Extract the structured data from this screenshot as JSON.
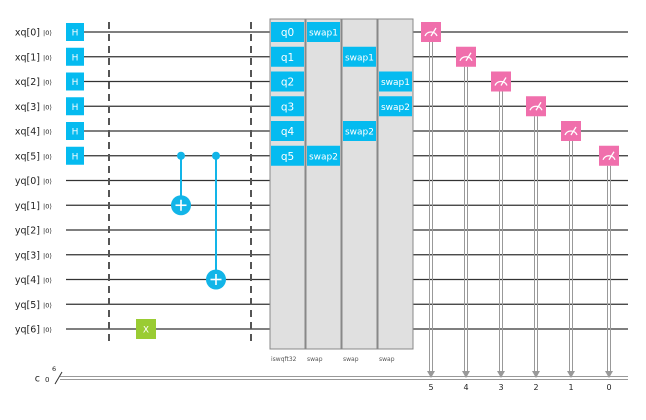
{
  "circuit": {
    "qubits": [
      {
        "label": "xq[0]",
        "init": "|0⟩"
      },
      {
        "label": "xq[1]",
        "init": "|0⟩"
      },
      {
        "label": "xq[2]",
        "init": "|0⟩"
      },
      {
        "label": "xq[3]",
        "init": "|0⟩"
      },
      {
        "label": "xq[4]",
        "init": "|0⟩"
      },
      {
        "label": "xq[5]",
        "init": "|0⟩"
      },
      {
        "label": "yq[0]",
        "init": "|0⟩"
      },
      {
        "label": "yq[1]",
        "init": "|0⟩"
      },
      {
        "label": "yq[2]",
        "init": "|0⟩"
      },
      {
        "label": "yq[3]",
        "init": "|0⟩"
      },
      {
        "label": "yq[4]",
        "init": "|0⟩"
      },
      {
        "label": "yq[5]",
        "init": "|0⟩"
      },
      {
        "label": "yq[6]",
        "init": "|0⟩"
      }
    ],
    "classical": {
      "label": "c",
      "init": "0",
      "width": "6"
    },
    "h_gates": {
      "label": "H",
      "targets": [
        0,
        1,
        2,
        3,
        4,
        5
      ]
    },
    "cnots": [
      {
        "control": 5,
        "target": 7
      },
      {
        "control": 5,
        "target": 10
      }
    ],
    "x_gate": {
      "label": "X",
      "target": 12
    },
    "iqft_block": {
      "name": "iswqft32",
      "pin_labels": [
        "q0",
        "q1",
        "q2",
        "q3",
        "q4",
        "q5"
      ]
    },
    "swap_blocks": [
      {
        "name": "swap",
        "pins": [
          {
            "label": "swap1",
            "qubit": 0
          },
          {
            "label": "swap2",
            "qubit": 5
          }
        ]
      },
      {
        "name": "swap",
        "pins": [
          {
            "label": "swap1",
            "qubit": 1
          },
          {
            "label": "swap2",
            "qubit": 4
          }
        ]
      },
      {
        "name": "swap",
        "pins": [
          {
            "label": "swap1",
            "qubit": 2
          },
          {
            "label": "swap2",
            "qubit": 3
          }
        ]
      }
    ],
    "measurements": [
      {
        "qubit": 0,
        "cbit": "5"
      },
      {
        "qubit": 1,
        "cbit": "4"
      },
      {
        "qubit": 2,
        "cbit": "3"
      },
      {
        "qubit": 3,
        "cbit": "2"
      },
      {
        "qubit": 4,
        "cbit": "1"
      },
      {
        "qubit": 5,
        "cbit": "0"
      }
    ],
    "colors": {
      "wire": "#333333",
      "gate": "#05bbf0",
      "cnot": "#12b5e8",
      "x_gate": "#9acc33",
      "measure": "#f06fac",
      "block_fill": "#e0e0e0",
      "block_stroke": "#888888",
      "classical": "#999999",
      "barrier": "#555555",
      "text_dark": "#222222",
      "text_light": "#ffffff"
    }
  }
}
